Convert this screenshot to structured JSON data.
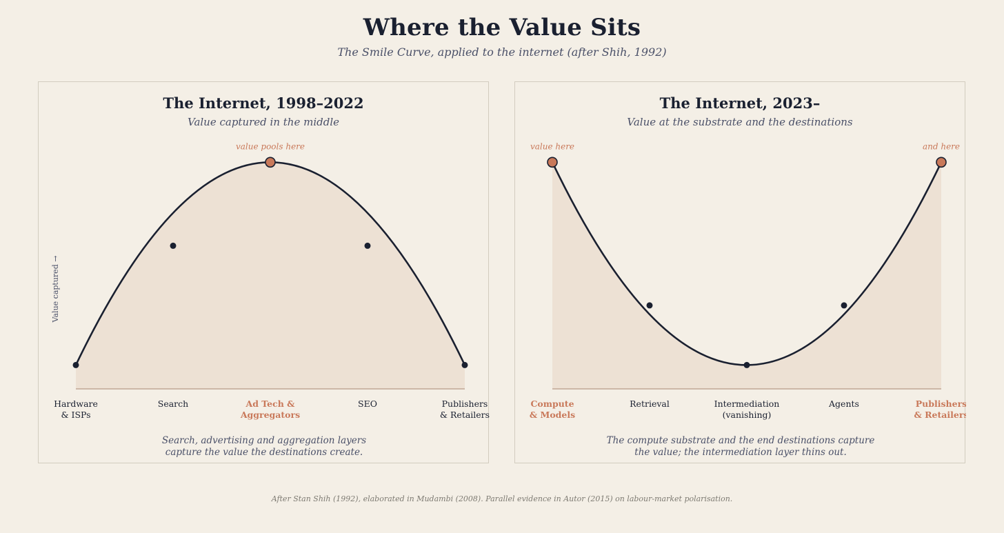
{
  "title": "Where the Value Sits",
  "subtitle": "The Smile Curve, applied to the internet (after Shih, 1992)",
  "footer": "After Stan Shih (1992), elaborated in Mudambi (2008). Parallel evidence in Autor (2015) on labour-market polarisation.",
  "colors": {
    "background": "#f4efe6",
    "ink": "#1a2030",
    "accent": "#c9795a",
    "fill": "#ede1d4",
    "muted": "#4a5068"
  },
  "panels": [
    {
      "title": "The Internet, 1998–2022",
      "subtitle": "Value captured in the middle",
      "y_axis_label": "Value captured →",
      "annotations": [
        "value pools here"
      ],
      "stages": [
        {
          "lines": [
            "Hardware",
            "& ISPs"
          ],
          "highlight": false
        },
        {
          "lines": [
            "Search"
          ],
          "highlight": false
        },
        {
          "lines": [
            "Ad Tech &",
            "Aggregators"
          ],
          "highlight": true
        },
        {
          "lines": [
            "SEO"
          ],
          "highlight": false
        },
        {
          "lines": [
            "Publishers",
            "& Retailers"
          ],
          "highlight": false
        }
      ],
      "caption": [
        "Search, advertising and aggregation layers",
        "capture the value the destinations create."
      ]
    },
    {
      "title": "The Internet, 2023–",
      "subtitle": "Value at the substrate and the destinations",
      "annotations": [
        "value here",
        "and here"
      ],
      "stages": [
        {
          "lines": [
            "Compute",
            "& Models"
          ],
          "highlight": true
        },
        {
          "lines": [
            "Retrieval"
          ],
          "highlight": false
        },
        {
          "lines": [
            "Intermediation",
            "(vanishing)"
          ],
          "highlight": false
        },
        {
          "lines": [
            "Agents"
          ],
          "highlight": false
        },
        {
          "lines": [
            "Publishers",
            "& Retailers"
          ],
          "highlight": true
        }
      ],
      "caption": [
        "The compute substrate and the end destinations capture",
        "the value; the intermediation layer thins out."
      ]
    }
  ],
  "chart_data": [
    {
      "type": "line",
      "title": "The Internet, 1998–2022",
      "categories": [
        "Hardware & ISPs",
        "Search",
        "Ad Tech & Aggregators",
        "SEO",
        "Publishers & Retailers"
      ],
      "values": [
        0.1,
        0.6,
        0.95,
        0.6,
        0.1
      ],
      "ylabel": "Value captured →",
      "ylim": [
        0,
        1
      ],
      "shape": "inverted-U (frown)",
      "area_fill": true,
      "highlighted": [
        "Ad Tech & Aggregators"
      ]
    },
    {
      "type": "line",
      "title": "The Internet, 2023–",
      "categories": [
        "Compute & Models",
        "Retrieval",
        "Intermediation (vanishing)",
        "Agents",
        "Publishers & Retailers"
      ],
      "values": [
        0.95,
        0.35,
        0.1,
        0.35,
        0.95
      ],
      "ylim": [
        0,
        1
      ],
      "shape": "U (smile)",
      "area_fill": true,
      "highlighted": [
        "Compute & Models",
        "Publishers & Retailers"
      ]
    }
  ]
}
